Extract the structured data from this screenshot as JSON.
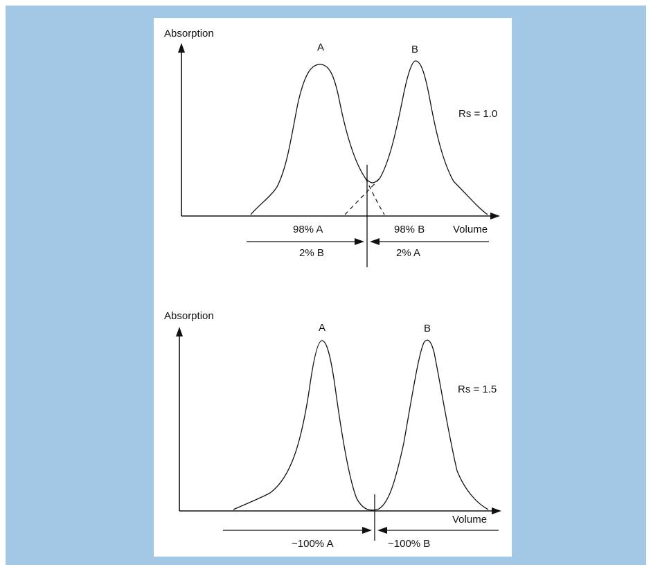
{
  "top_diagram": {
    "y_axis_label": "Absorption",
    "x_axis_label": "Volume",
    "peak_a_label": "A",
    "peak_b_label": "B",
    "resolution_label": "Rs = 1.0",
    "left_fraction_main": "98% A",
    "right_fraction_main": "98% B",
    "left_fraction_minor": "2% B",
    "right_fraction_minor": "2% A"
  },
  "bottom_diagram": {
    "y_axis_label": "Absorption",
    "x_axis_label": "Volume",
    "peak_a_label": "A",
    "peak_b_label": "B",
    "resolution_label": "Rs = 1.5",
    "left_fraction": "~100% A",
    "right_fraction": "~100% B"
  }
}
